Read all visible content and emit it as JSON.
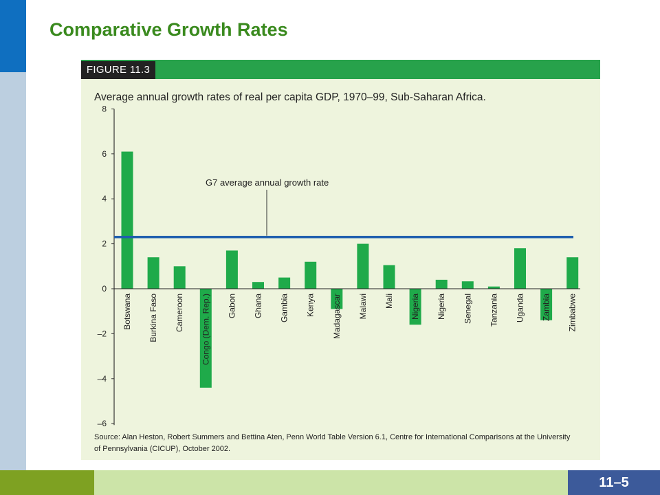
{
  "slide": {
    "title": "Comparative Growth Rates",
    "page_number": "11–5"
  },
  "figure": {
    "label": "FIGURE 11.3",
    "source": [
      "Source: Alan Heston, Robert Summers and Bettina Aten, Penn World Table Version 6.1, Centre for International Comparisons at the University",
      "of Pennsylvania (CICUP), October 2002."
    ]
  },
  "colors": {
    "bar": "#1faa4a",
    "reference_line": "#1f5fae",
    "panel": "#eef4dd",
    "title": "#3a8a1e"
  },
  "chart_data": {
    "type": "bar",
    "title": "Average annual growth rates of real per capita GDP, 1970–99, Sub-Saharan Africa.",
    "categories": [
      "Botswana",
      "Burkina Faso",
      "Cameroon",
      "Congo (Dem. Rep.)",
      "Gabon",
      "Ghana",
      "Gambia",
      "Kenya",
      "Madagascar",
      "Malawi",
      "Mali",
      "Nigeria",
      "Nigeria",
      "Senegal",
      "Tanzania",
      "Uganda",
      "Zambia",
      "Zimbabwe"
    ],
    "values": [
      6.1,
      1.4,
      1.0,
      -4.4,
      1.7,
      0.3,
      0.5,
      1.2,
      -0.9,
      2.0,
      1.05,
      -1.6,
      0.4,
      0.33,
      0.1,
      1.8,
      -1.4,
      1.4
    ],
    "ylim": [
      -6,
      8
    ],
    "yticks": [
      8,
      6,
      4,
      2,
      0,
      -2,
      -4,
      -6
    ],
    "ytick_labels": [
      "8",
      "6",
      "4",
      "2",
      "0",
      "–2",
      "–4",
      "–6"
    ],
    "reference_line": {
      "value": 2.3,
      "label": "G7 average annual growth rate"
    },
    "grid": false,
    "legend": "none"
  }
}
